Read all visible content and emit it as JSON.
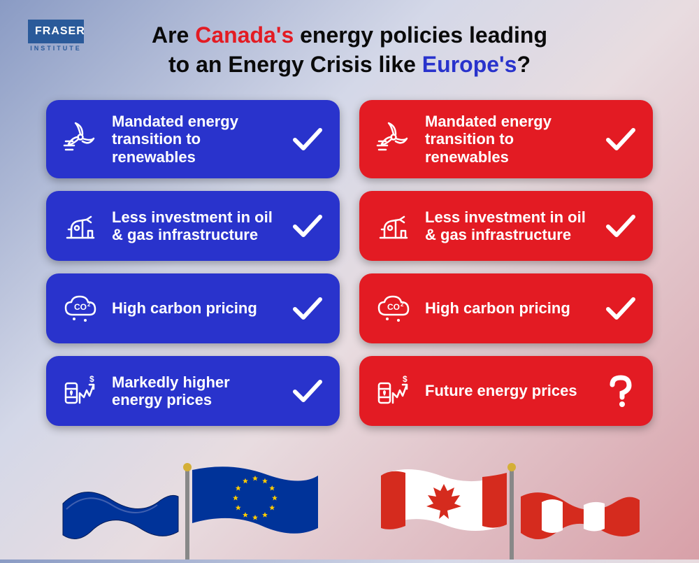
{
  "logo": {
    "main": "FRASER",
    "sub": "INSTITUTE"
  },
  "title": {
    "pre": "Are ",
    "red": "Canada's",
    "mid": " energy policies leading",
    "line2_pre": "to an Energy Crisis like ",
    "blue": "Europe's",
    "post": "?"
  },
  "colors": {
    "blue": "#2933cc",
    "red": "#e31b23",
    "white": "#ffffff",
    "logo_bg": "#2a5a9a",
    "eu_flag": "#003399",
    "eu_star": "#ffcc00",
    "ca_flag_red": "#d52b1e",
    "ca_flag_white": "#ffffff"
  },
  "cards_left": [
    {
      "icon": "turbine",
      "text": "Mandated energy transition to renewables",
      "mark": "check"
    },
    {
      "icon": "oilrig",
      "text": "Less investment in oil & gas infrastructure",
      "mark": "check"
    },
    {
      "icon": "co2",
      "text": "High carbon pricing",
      "mark": "check"
    },
    {
      "icon": "barrel",
      "text": "Markedly higher energy prices",
      "mark": "check"
    }
  ],
  "cards_right": [
    {
      "icon": "turbine",
      "text": "Mandated energy transition to renewables",
      "mark": "check"
    },
    {
      "icon": "oilrig",
      "text": "Less investment in oil & gas infrastructure",
      "mark": "check"
    },
    {
      "icon": "co2",
      "text": "High carbon pricing",
      "mark": "check"
    },
    {
      "icon": "barrel",
      "text": "Future energy prices",
      "mark": "question"
    }
  ],
  "style": {
    "title_fontsize": 32,
    "card_fontsize": 22,
    "card_radius": 18,
    "card_gap": 18,
    "col_gap": 28,
    "icon_size": 54,
    "mark_size": 50
  }
}
